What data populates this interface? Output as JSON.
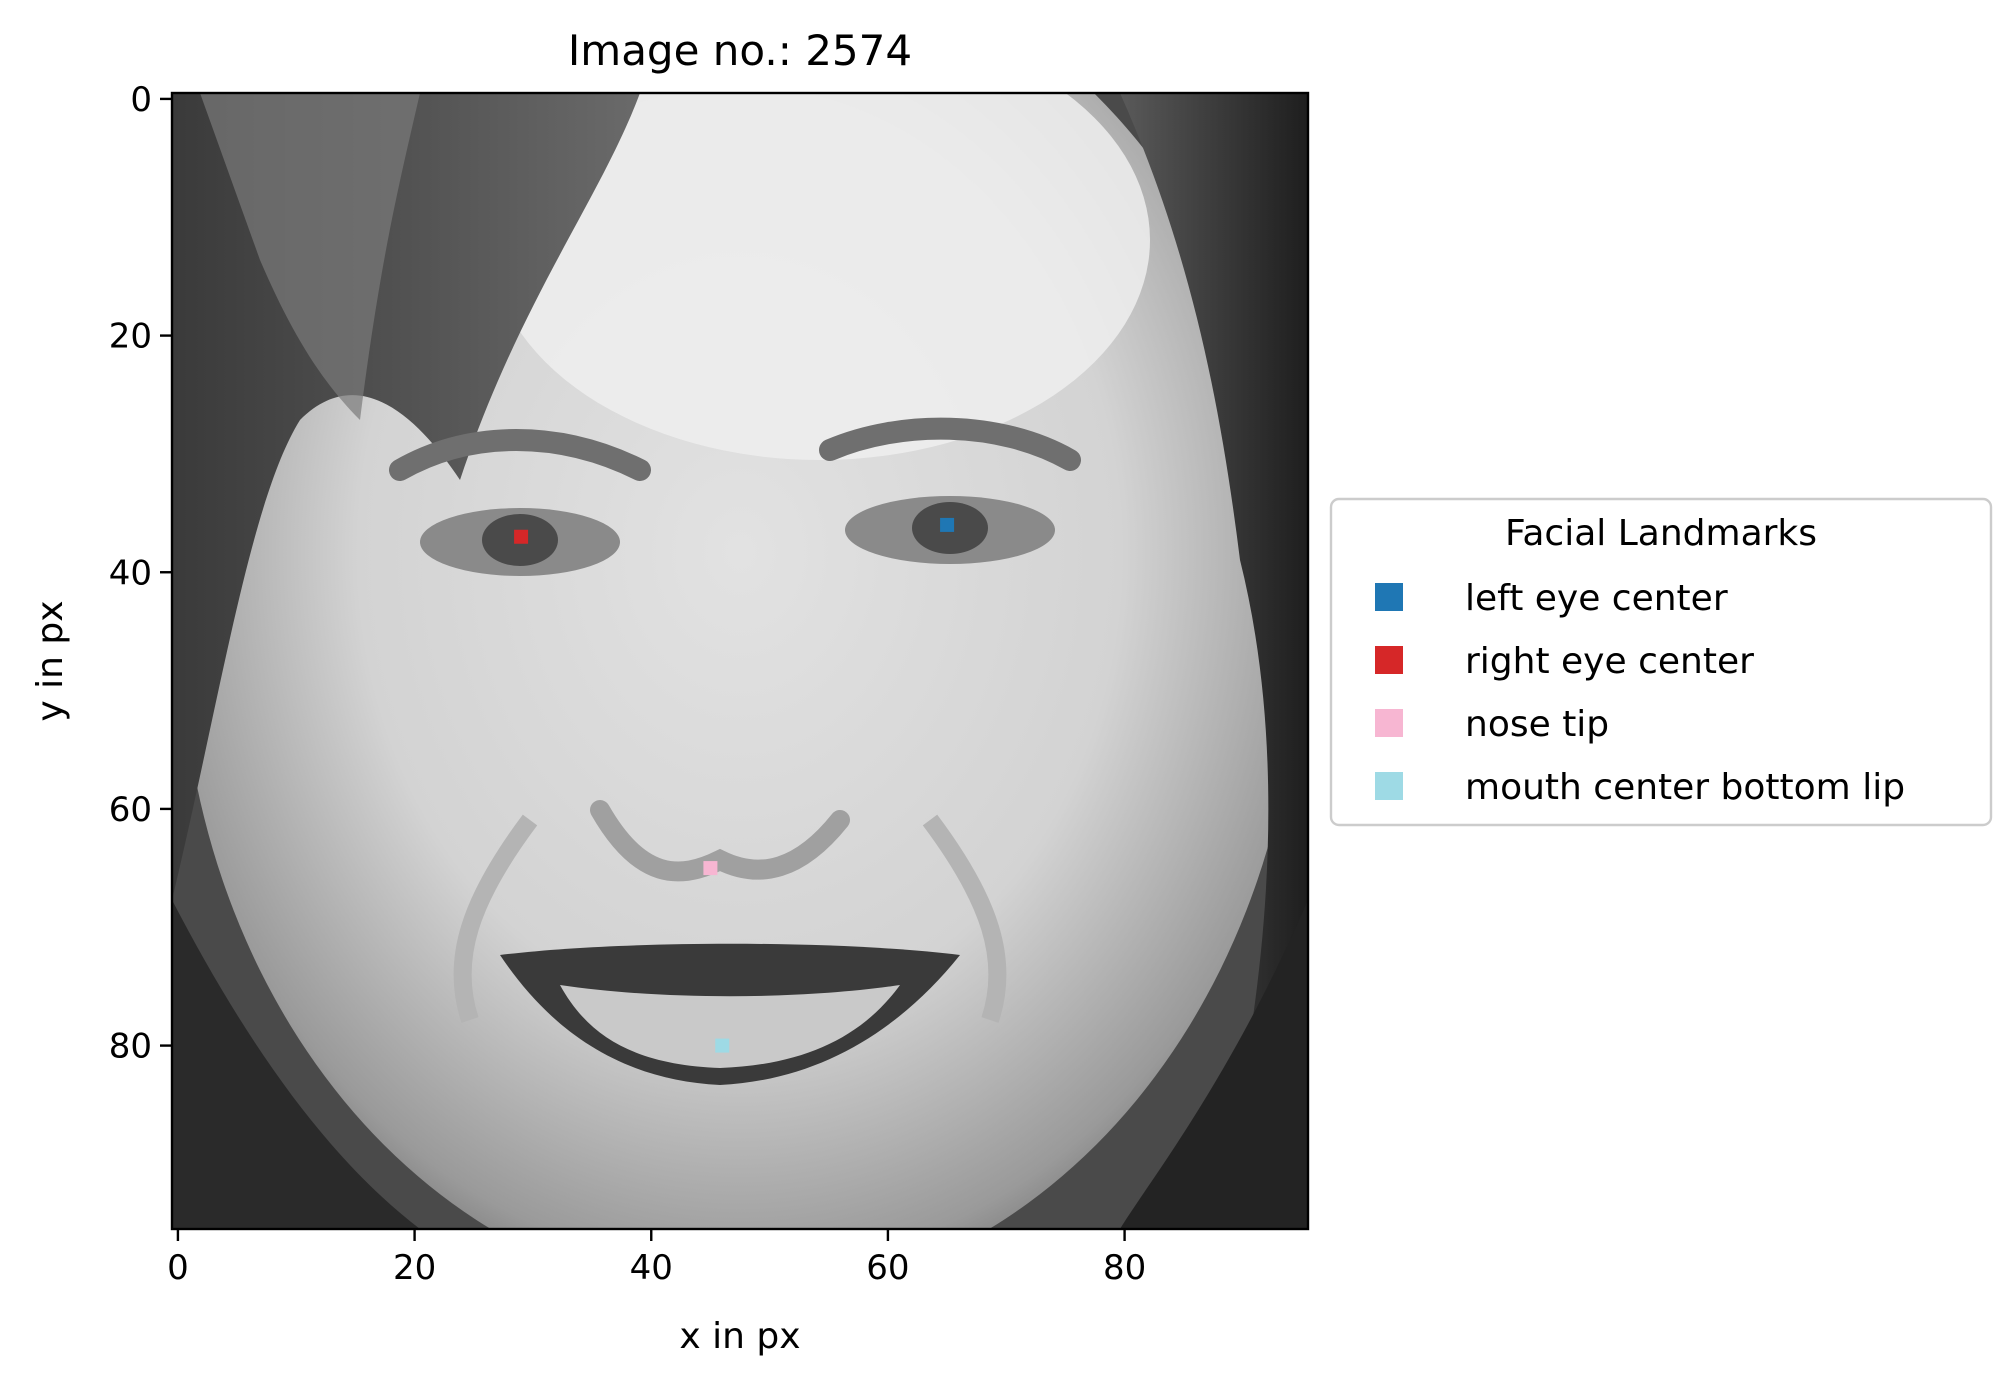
{
  "chart_data": {
    "type": "scatter",
    "title": "Image no.: 2574",
    "xlabel": "x in px",
    "ylabel": "y in px",
    "xlim": [
      -0.5,
      95.5
    ],
    "ylim": [
      95.5,
      -0.5
    ],
    "y_inverted": true,
    "xticks": [
      0,
      20,
      40,
      60,
      80
    ],
    "yticks": [
      0,
      20,
      40,
      60,
      80
    ],
    "background": "grayscale face photograph (96x96 px)",
    "legend": {
      "title": "Facial Landmarks",
      "placement": "center-right outside"
    },
    "series": [
      {
        "name": "left eye center",
        "color": "#1f77b4",
        "x": 65,
        "y": 36
      },
      {
        "name": "right eye center",
        "color": "#d62728",
        "x": 29,
        "y": 37
      },
      {
        "name": "nose tip",
        "color": "#f7b6d2",
        "x": 45,
        "y": 65
      },
      {
        "name": "mouth center bottom lip",
        "color": "#9edae5",
        "x": 46,
        "y": 80
      }
    ]
  }
}
